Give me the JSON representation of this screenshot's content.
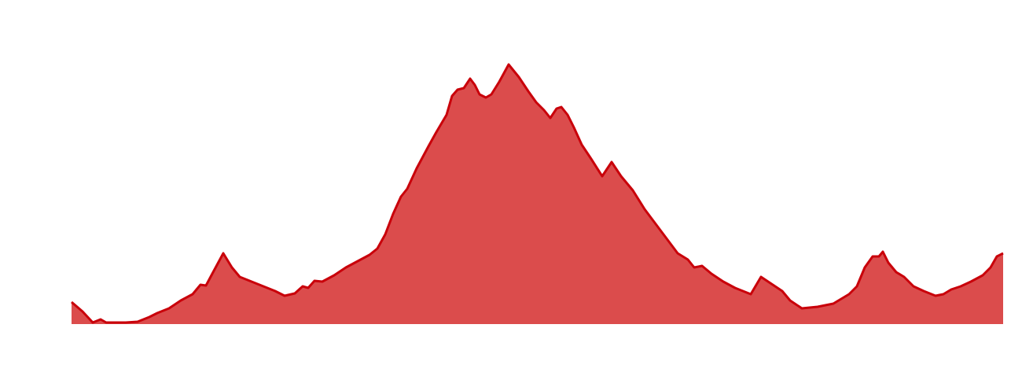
{
  "chart_data": {
    "type": "area",
    "x": [
      0,
      14,
      27,
      37,
      44,
      69,
      84,
      99,
      109,
      124,
      139,
      154,
      164,
      171,
      179,
      193,
      204,
      214,
      229,
      244,
      259,
      271,
      284,
      294,
      301,
      309,
      319,
      334,
      349,
      364,
      379,
      389,
      399,
      409,
      419,
      427,
      439,
      454,
      464,
      477,
      484,
      491,
      499,
      507,
      513,
      519,
      527,
      534,
      544,
      556,
      569,
      581,
      591,
      601,
      609,
      617,
      623,
      631,
      639,
      649,
      661,
      675,
      687,
      699,
      714,
      729,
      744,
      759,
      771,
      784,
      792,
      802,
      814,
      829,
      844,
      864,
      877,
      889,
      904,
      914,
      929,
      949,
      969,
      979,
      989,
      999,
      1009,
      1019,
      1027,
      1032,
      1039,
      1049,
      1059,
      1071,
      1084,
      1099,
      1109,
      1119,
      1131,
      1144,
      1159,
      1169,
      1177,
      1185
    ],
    "values": [
      28,
      16,
      2,
      6,
      2,
      2,
      3,
      9,
      14,
      20,
      30,
      38,
      50,
      49,
      64,
      90,
      72,
      60,
      54,
      48,
      42,
      36,
      39,
      48,
      46,
      55,
      54,
      62,
      72,
      80,
      88,
      96,
      114,
      140,
      162,
      172,
      198,
      226,
      244,
      266,
      290,
      298,
      300,
      312,
      304,
      292,
      288,
      292,
      308,
      330,
      314,
      296,
      282,
      272,
      262,
      274,
      276,
      266,
      250,
      228,
      210,
      188,
      206,
      188,
      170,
      146,
      126,
      106,
      90,
      82,
      72,
      74,
      64,
      54,
      46,
      38,
      60,
      52,
      42,
      30,
      20,
      22,
      26,
      32,
      38,
      48,
      72,
      86,
      86,
      92,
      78,
      66,
      60,
      48,
      42,
      36,
      38,
      44,
      48,
      54,
      62,
      72,
      86,
      90
    ],
    "xlim": [
      0,
      1185
    ],
    "ylim": [
      0,
      360
    ],
    "color": "#db4c4c",
    "line_color": "#c9000a"
  }
}
